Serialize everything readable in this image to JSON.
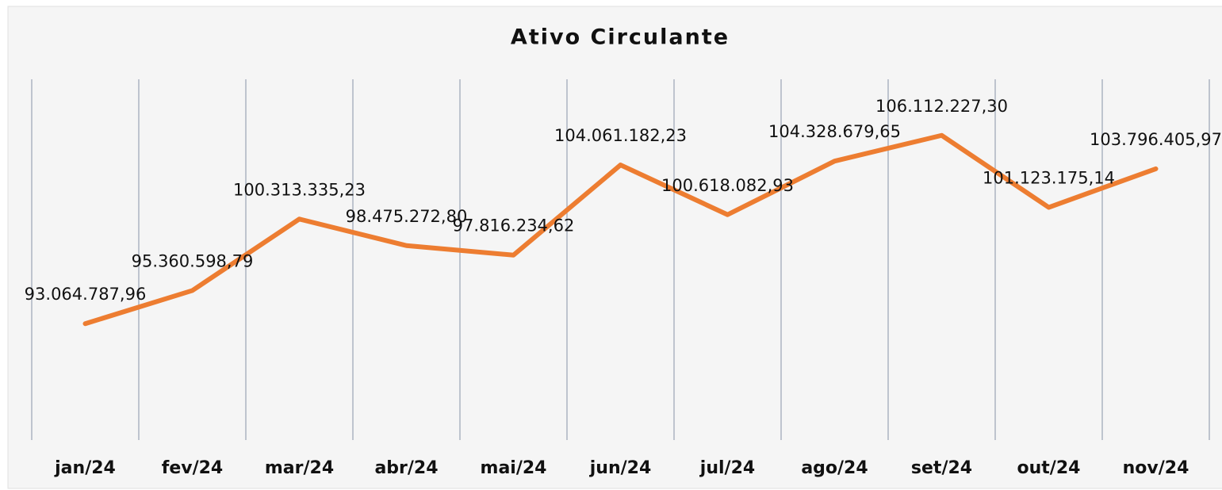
{
  "chart_data": {
    "type": "line",
    "title": "Ativo Circulante",
    "categories": [
      "jan/24",
      "fev/24",
      "mar/24",
      "abr/24",
      "mai/24",
      "jun/24",
      "jul/24",
      "ago/24",
      "set/24",
      "out/24",
      "nov/24"
    ],
    "series": [
      {
        "name": "Ativo Circulante",
        "color": "#ed7d31",
        "values": [
          93064787.96,
          95360598.79,
          100313335.23,
          98475272.8,
          97816234.62,
          104061182.23,
          100618082.93,
          104328679.65,
          106112227.3,
          101123175.14,
          103796405.97
        ],
        "value_labels": [
          "93.064.787,96",
          "95.360.598,79",
          "100.313.335,23",
          "98.475.272,80",
          "97.816.234,62",
          "104.061.182,23",
          "100.618.082,93",
          "104.328.679,65",
          "106.112.227,30",
          "101.123.175,14",
          "103.796.405,97"
        ]
      }
    ],
    "ylim": [
      85000000,
      110000000
    ]
  }
}
